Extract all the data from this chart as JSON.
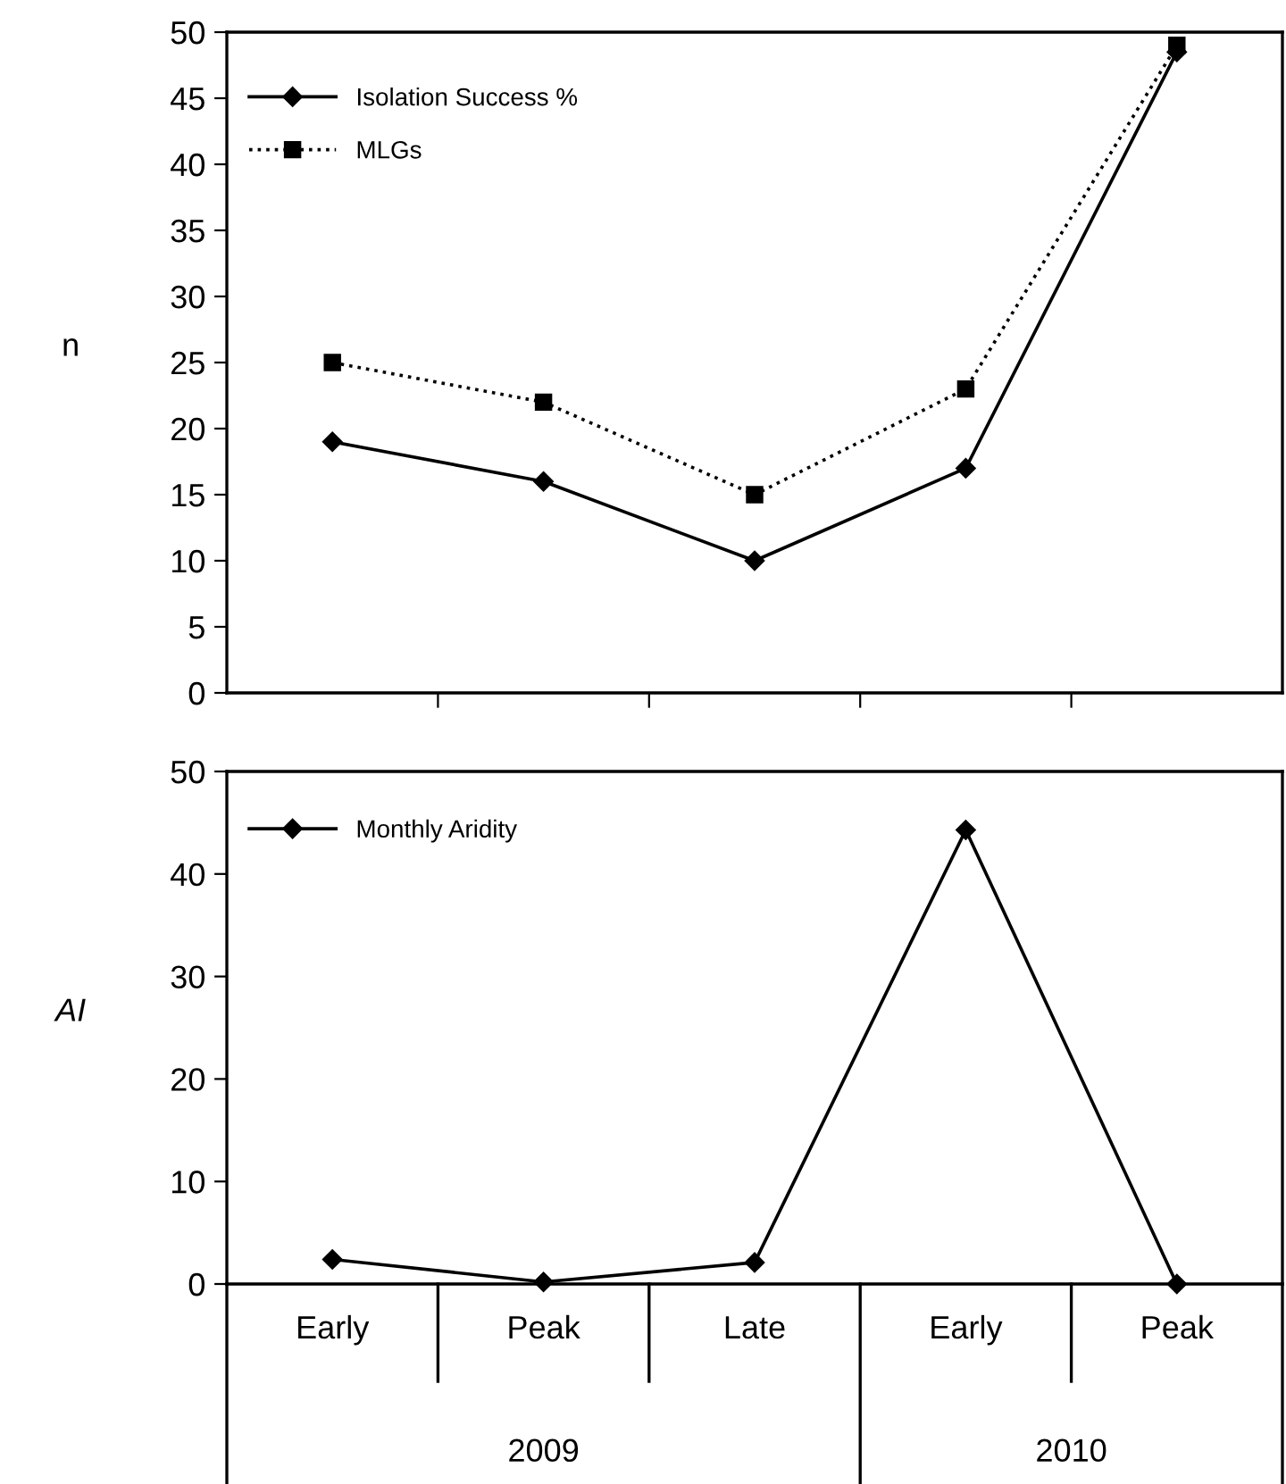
{
  "chart_data": [
    {
      "type": "line",
      "ylabel": "n",
      "categories": [
        null,
        null,
        null,
        null,
        null
      ],
      "ylim": [
        0,
        50
      ],
      "yticks": [
        0,
        5,
        10,
        15,
        20,
        25,
        30,
        35,
        40,
        45,
        50
      ],
      "legend": "top left",
      "grid": false,
      "series": [
        {
          "name": "Isolation Success %",
          "color": "#000000",
          "marker": "diamond",
          "line_style": "solid",
          "values": [
            19,
            16,
            10,
            17,
            48.5
          ]
        },
        {
          "name": "MLGs",
          "color": "#000000",
          "marker": "square",
          "line_style": "dotted",
          "values": [
            25,
            22,
            15,
            23,
            49
          ]
        }
      ]
    },
    {
      "type": "line",
      "ylabel": "AI",
      "categories": [
        "Early",
        "Peak",
        "Late",
        "Early",
        "Peak"
      ],
      "ylim": [
        0,
        50
      ],
      "yticks": [
        0,
        10,
        20,
        30,
        40,
        50
      ],
      "legend": "top left",
      "grid": false,
      "annotations": [
        "2009",
        "2010"
      ],
      "series": [
        {
          "name": "Monthly Aridity",
          "color": "#000000",
          "marker": "diamond",
          "line_style": "solid",
          "values": [
            2.4,
            0.2,
            2.1,
            44.3,
            0
          ]
        }
      ]
    }
  ]
}
